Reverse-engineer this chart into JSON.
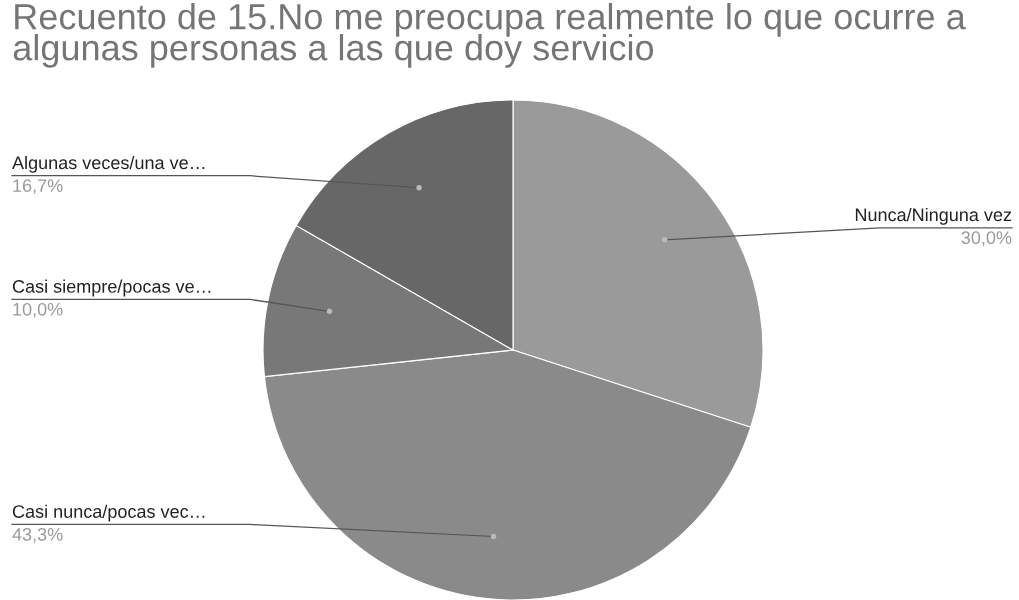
{
  "chart_data": {
    "type": "pie",
    "title": "Recuento de 15.No me preocupa realmente lo que ocurre a algunas personas a las que doy servicio",
    "categories": [
      "Nunca/Ninguna vez",
      "Casi nunca/pocas vec…",
      "Casi siempre/pocas ve…",
      "Algunas veces/una ve…"
    ],
    "values": [
      30.0,
      43.3,
      10.0,
      16.7
    ],
    "value_labels": [
      "30,0%",
      "43,3%",
      "10,0%",
      "16,7%"
    ],
    "colors": [
      "#9a9a9a",
      "#8a8a8a",
      "#787878",
      "#676767"
    ]
  }
}
